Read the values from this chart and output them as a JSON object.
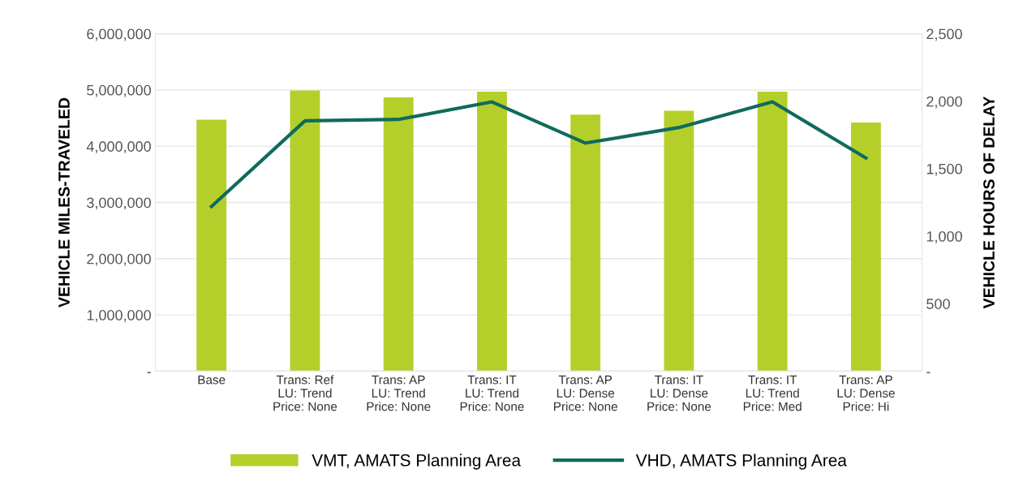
{
  "chart_data": {
    "type": "bar",
    "categories": [
      "Base",
      "Trans: Ref\nLU: Trend\nPrice: None",
      "Trans: AP\nLU: Trend\nPrice: None",
      "Trans: IT\nLU: Trend\nPrice: None",
      "Trans: AP\nLU: Dense\nPrice: None",
      "Trans: IT\nLU: Dense\nPrice: None",
      "Trans: IT\nLU: Trend\nPrice: Med",
      "Trans: AP\nLU: Dense\nPrice: Hi"
    ],
    "series": [
      {
        "name": "VMT, AMATS Planning Area",
        "color": "#b5cf2a",
        "values": [
          4470000,
          4990000,
          4870000,
          4970000,
          4560000,
          4630000,
          4970000,
          4420000
        ]
      },
      {
        "name": "VHD, AMATS Planning Area",
        "type": "line",
        "axis": "y2",
        "color": "#0f6b5c",
        "values": [
          1220,
          1855,
          1865,
          1995,
          1690,
          1805,
          1995,
          1580
        ]
      }
    ],
    "ylabel": "VEHICLE MILES-TRAVELED",
    "y2label": "VEHICLE HOURS OF DELAY",
    "ylim": [
      0,
      6000000
    ],
    "yticks": [
      {
        "value": 0,
        "label": "-"
      },
      {
        "value": 1000000,
        "label": "1,000,000"
      },
      {
        "value": 2000000,
        "label": "2,000,000"
      },
      {
        "value": 3000000,
        "label": "3,000,000"
      },
      {
        "value": 4000000,
        "label": "4,000,000"
      },
      {
        "value": 5000000,
        "label": "5,000,000"
      },
      {
        "value": 6000000,
        "label": "6,000,000"
      }
    ],
    "y2lim": [
      0,
      2500
    ],
    "y2ticks": [
      {
        "value": 0,
        "label": "-"
      },
      {
        "value": 500,
        "label": "500"
      },
      {
        "value": 1000,
        "label": "1,000"
      },
      {
        "value": 1500,
        "label": "1,500"
      },
      {
        "value": 2000,
        "label": "2,000"
      },
      {
        "value": 2500,
        "label": "2,500"
      }
    ],
    "grid": "y",
    "legend": "bottom",
    "marker": "none",
    "line_style": "solid"
  }
}
